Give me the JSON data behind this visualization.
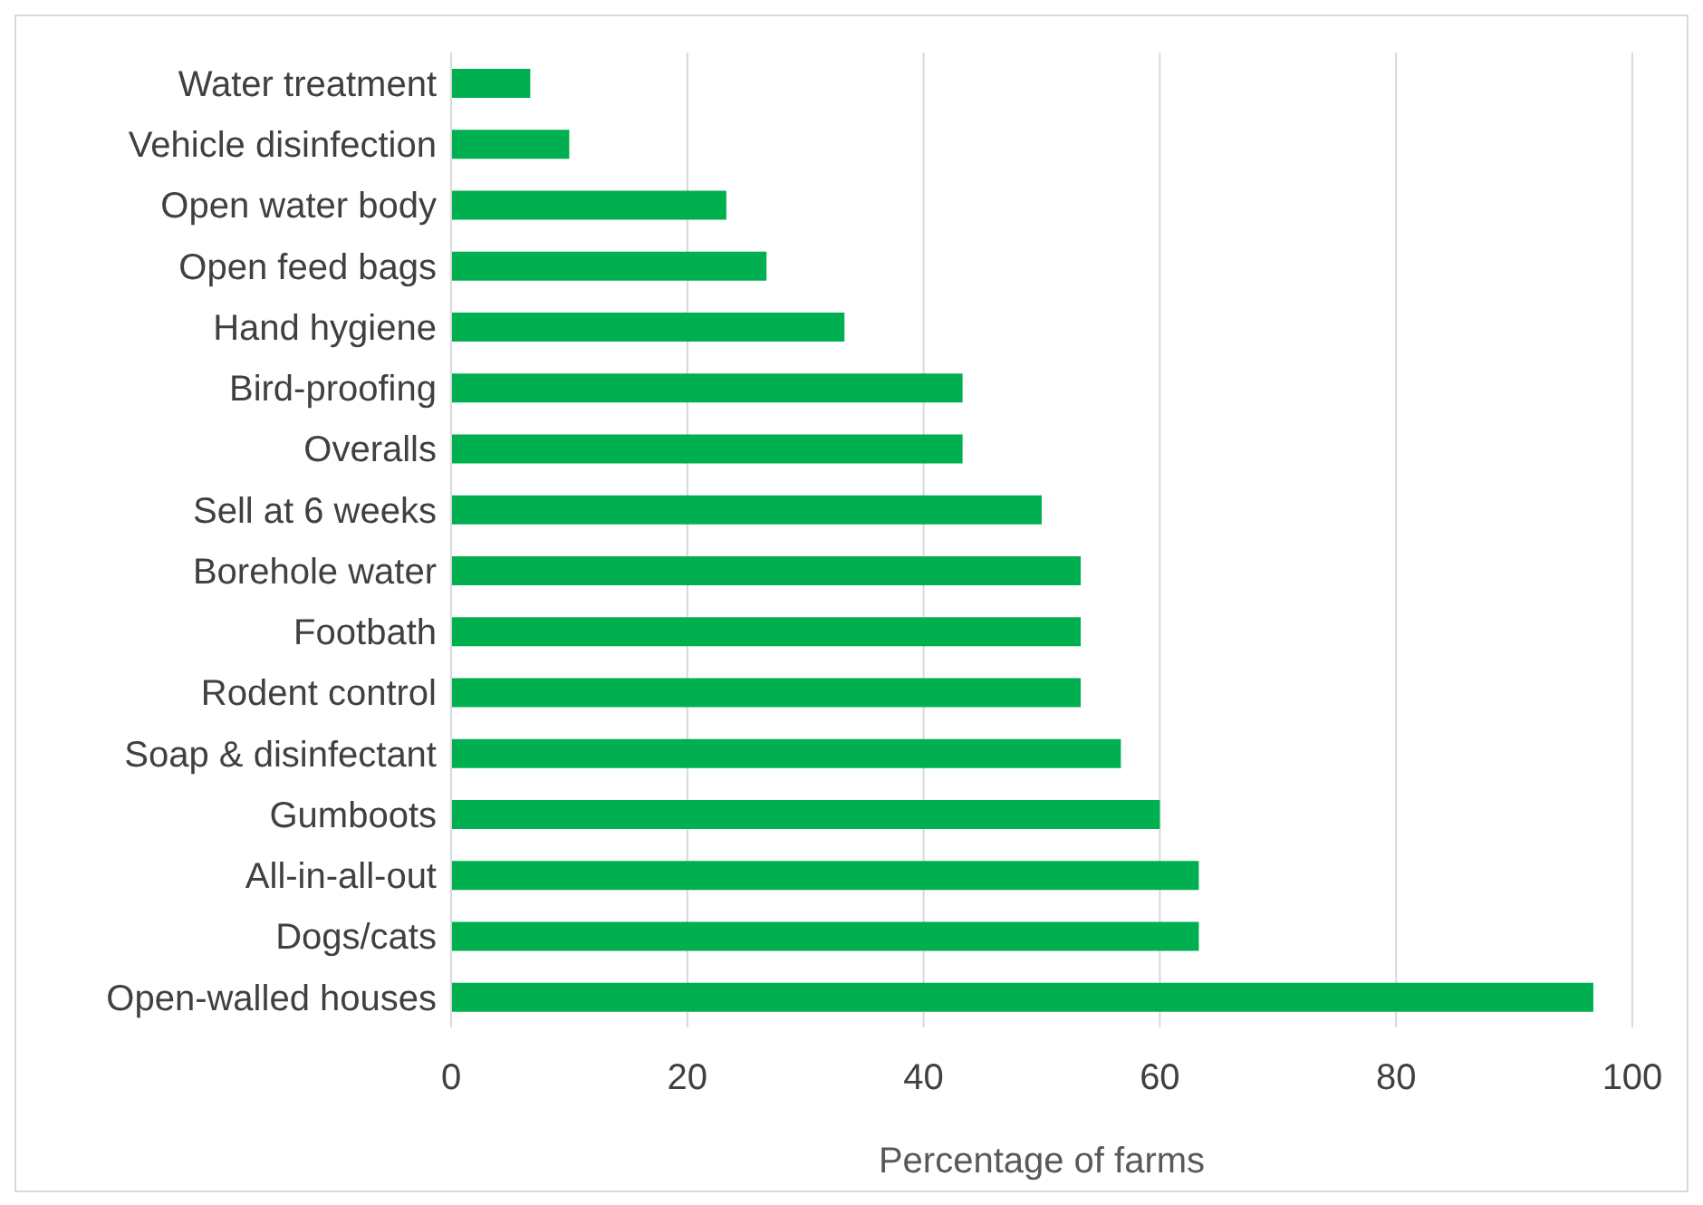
{
  "chart_data": {
    "type": "bar",
    "orientation": "horizontal",
    "xlabel": "Percentage of farms",
    "categories": [
      "Water treatment",
      "Vehicle disinfection",
      "Open water body",
      "Open feed bags",
      "Hand hygiene",
      "Bird-proofing",
      "Overalls",
      "Sell at 6 weeks",
      "Borehole water",
      "Footbath",
      "Rodent control",
      "Soap & disinfectant",
      "Gumboots",
      "All-in-all-out",
      "Dogs/cats",
      "Open-walled houses"
    ],
    "values": [
      6.7,
      10,
      23.3,
      26.7,
      33.3,
      43.3,
      43.3,
      50,
      53.3,
      53.3,
      53.3,
      56.7,
      60,
      63.3,
      63.3,
      96.7
    ],
    "color": "#00b050",
    "xlim": [
      0,
      100
    ],
    "xticks": [
      0,
      20,
      40,
      60,
      80,
      100
    ],
    "grid": "x",
    "legend": false
  }
}
